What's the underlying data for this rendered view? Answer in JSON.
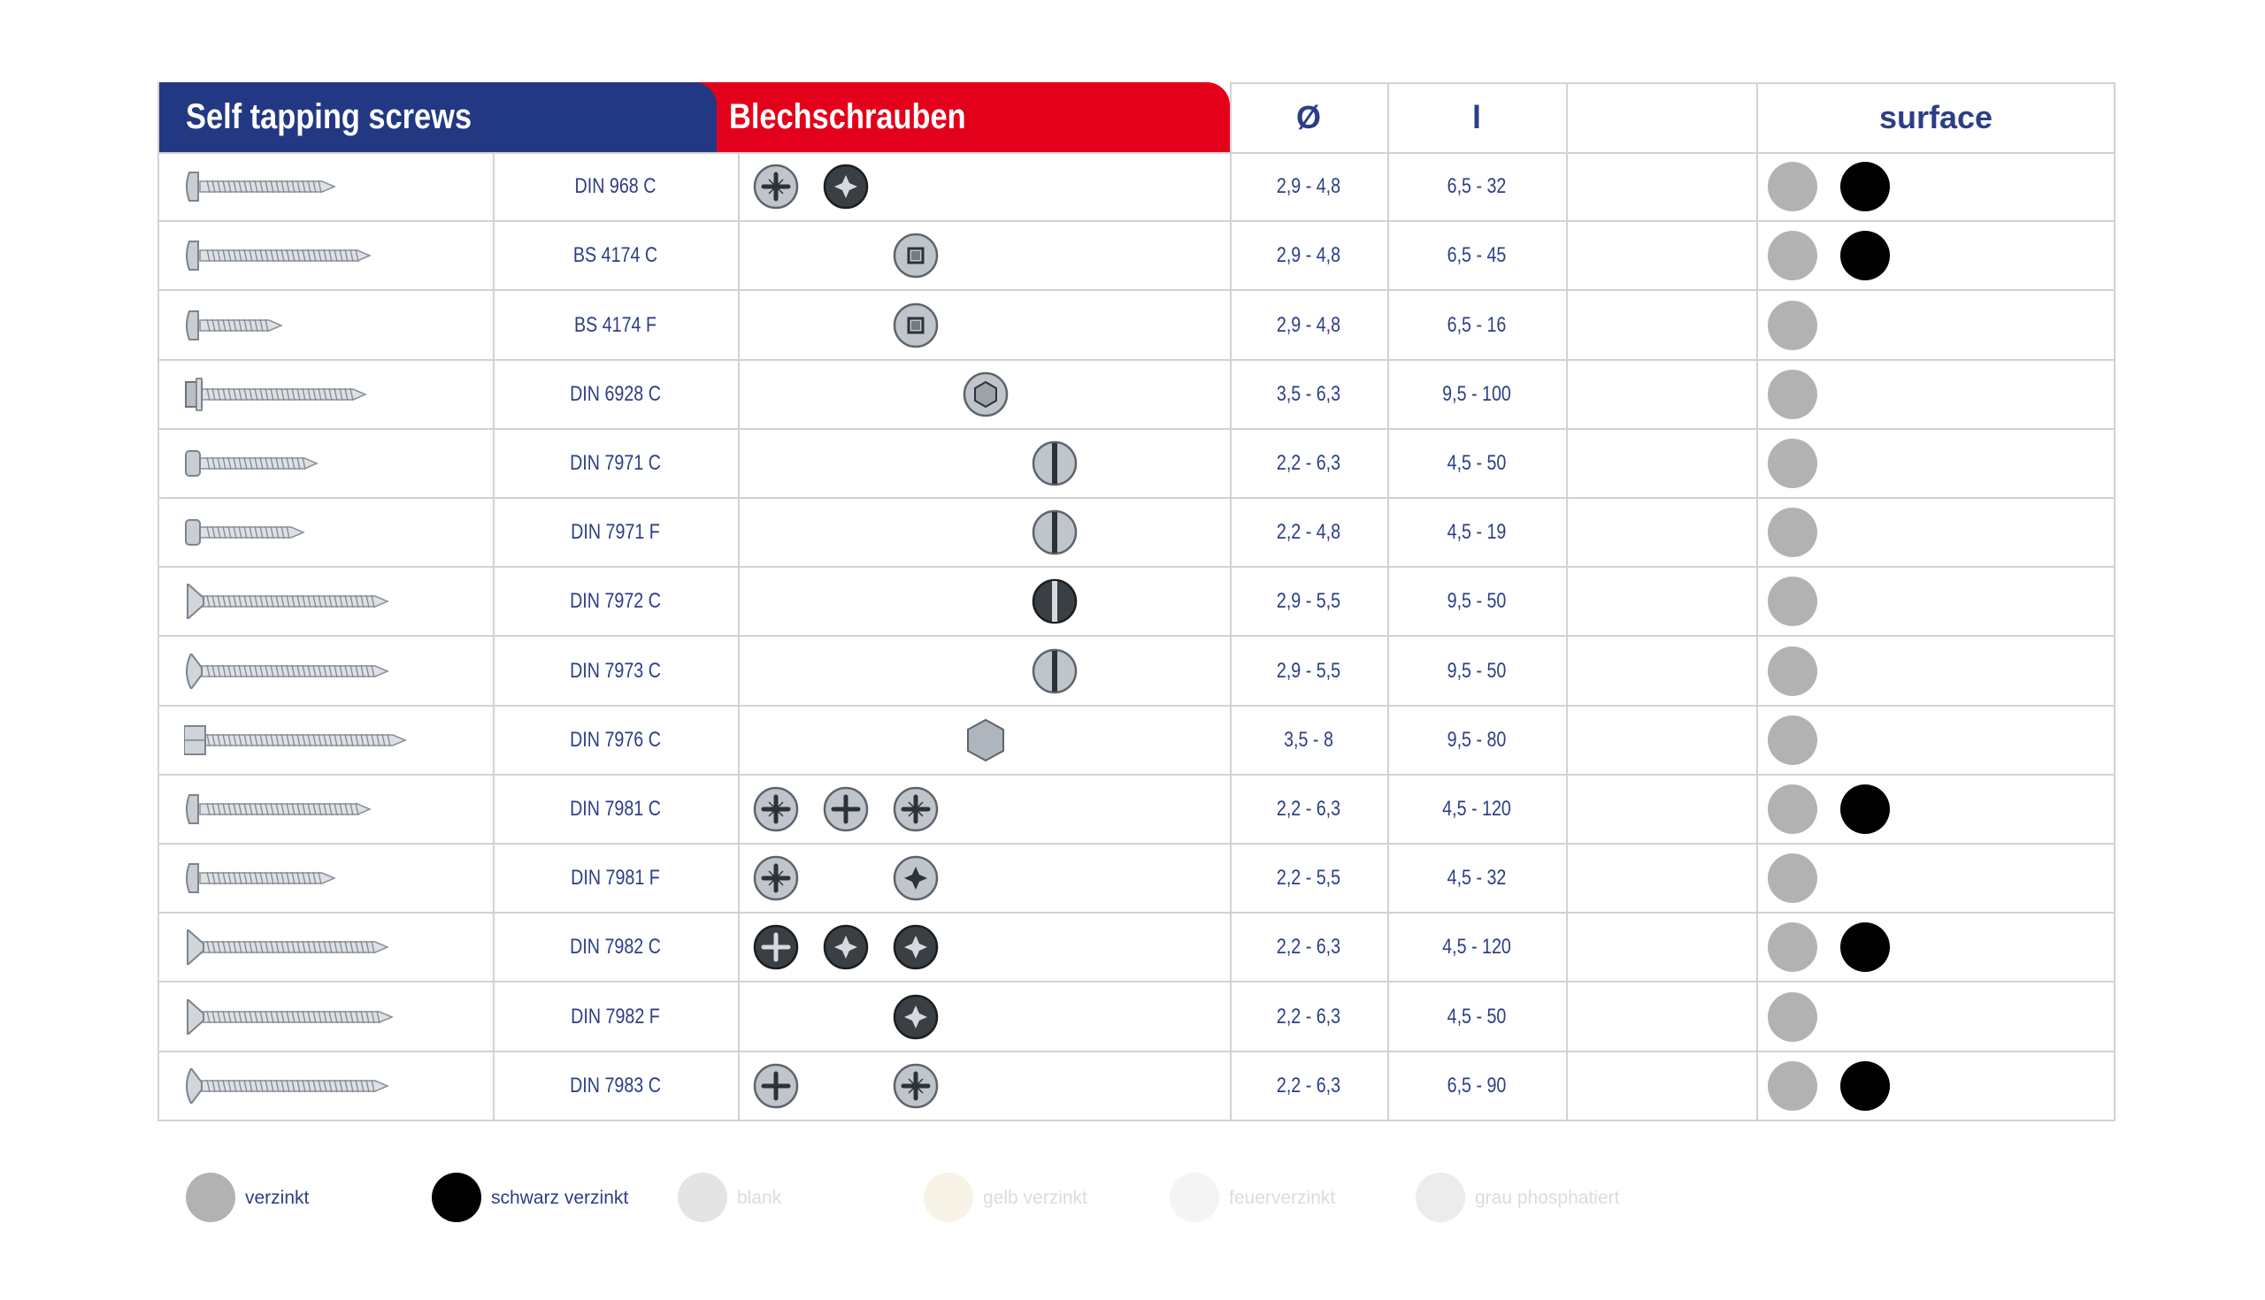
{
  "header": {
    "title_en": "Self tapping screws",
    "title_de": "Blechschrauben",
    "col_diameter": "Ø",
    "col_length": "l",
    "col_blank": "",
    "col_surface": "surface"
  },
  "colors": {
    "blue": "#233883",
    "red": "#e3001b",
    "verzinkt": "#b2b2b2",
    "schwarz_verzinkt": "#000000",
    "text": "#2c3e86"
  },
  "rows": [
    {
      "norm": "DIN 968 C",
      "diameter": "2,9 - 4,8",
      "length": "6,5 - 32",
      "heads": [
        {
          "pos": 0,
          "type": "pozi"
        },
        {
          "pos": 1,
          "type": "torx-dark"
        }
      ],
      "surface": [
        "verzinkt",
        "schwarz verzinkt"
      ],
      "screw": "pan"
    },
    {
      "norm": "BS 4174 C",
      "diameter": "2,9 - 4,8",
      "length": "6,5 - 45",
      "heads": [
        {
          "pos": 2,
          "type": "square"
        }
      ],
      "surface": [
        "verzinkt",
        "schwarz verzinkt"
      ],
      "screw": "pan-long"
    },
    {
      "norm": "BS 4174 F",
      "diameter": "2,9 - 4,8",
      "length": "6,5 - 16",
      "heads": [
        {
          "pos": 2,
          "type": "square"
        }
      ],
      "surface": [
        "verzinkt"
      ],
      "screw": "pan-short"
    },
    {
      "norm": "DIN 6928 C",
      "diameter": "3,5 - 6,3",
      "length": "9,5 - 100",
      "heads": [
        {
          "pos": 3,
          "type": "hex-washer"
        }
      ],
      "surface": [
        "verzinkt"
      ],
      "screw": "hex-washer"
    },
    {
      "norm": "DIN 7971 C",
      "diameter": "2,2 - 6,3",
      "length": "4,5 - 50",
      "heads": [
        {
          "pos": 4,
          "type": "slot"
        }
      ],
      "surface": [
        "verzinkt"
      ],
      "screw": "cheese"
    },
    {
      "norm": "DIN 7971 F",
      "diameter": "2,2 - 4,8",
      "length": "4,5 - 19",
      "heads": [
        {
          "pos": 4,
          "type": "slot"
        }
      ],
      "surface": [
        "verzinkt"
      ],
      "screw": "cheese-short"
    },
    {
      "norm": "DIN 7972 C",
      "diameter": "2,9 - 5,5",
      "length": "9,5 - 50",
      "heads": [
        {
          "pos": 4,
          "type": "slot-dark"
        }
      ],
      "surface": [
        "verzinkt"
      ],
      "screw": "countersunk"
    },
    {
      "norm": "DIN 7973 C",
      "diameter": "2,9 - 5,5",
      "length": "9,5 - 50",
      "heads": [
        {
          "pos": 4,
          "type": "slot"
        }
      ],
      "surface": [
        "verzinkt"
      ],
      "screw": "raised"
    },
    {
      "norm": "DIN 7976 C",
      "diameter": "3,5 - 8",
      "length": "9,5 - 80",
      "heads": [
        {
          "pos": 3,
          "type": "hex"
        }
      ],
      "surface": [
        "verzinkt"
      ],
      "screw": "hex"
    },
    {
      "norm": "DIN 7981 C",
      "diameter": "2,2 - 6,3",
      "length": "4,5 - 120",
      "heads": [
        {
          "pos": 0,
          "type": "pozi"
        },
        {
          "pos": 1,
          "type": "phillips"
        },
        {
          "pos": 2,
          "type": "pozi"
        }
      ],
      "surface": [
        "verzinkt",
        "schwarz verzinkt"
      ],
      "screw": "pan-long"
    },
    {
      "norm": "DIN 7981 F",
      "diameter": "2,2 - 5,5",
      "length": "4,5 - 32",
      "heads": [
        {
          "pos": 0,
          "type": "pozi"
        },
        {
          "pos": 2,
          "type": "torx"
        }
      ],
      "surface": [
        "verzinkt"
      ],
      "screw": "pan"
    },
    {
      "norm": "DIN 7982 C",
      "diameter": "2,2 - 6,3",
      "length": "4,5 - 120",
      "heads": [
        {
          "pos": 0,
          "type": "phillips-dark"
        },
        {
          "pos": 1,
          "type": "torx-dark"
        },
        {
          "pos": 2,
          "type": "torx-dark"
        }
      ],
      "surface": [
        "verzinkt",
        "schwarz verzinkt"
      ],
      "screw": "countersunk"
    },
    {
      "norm": "DIN 7982 F",
      "diameter": "2,2 - 6,3",
      "length": "4,5 - 50",
      "heads": [
        {
          "pos": 2,
          "type": "torx-dark"
        }
      ],
      "surface": [
        "verzinkt"
      ],
      "screw": "countersunk-f"
    },
    {
      "norm": "DIN 7983 C",
      "diameter": "2,2 - 6,3",
      "length": "6,5 - 90",
      "heads": [
        {
          "pos": 0,
          "type": "phillips"
        },
        {
          "pos": 2,
          "type": "pozi"
        }
      ],
      "surface": [
        "verzinkt",
        "schwarz verzinkt"
      ],
      "screw": "raised"
    }
  ],
  "legend": [
    {
      "label": "verzinkt",
      "color": "#b2b2b2",
      "active": true
    },
    {
      "label": "schwarz verzinkt",
      "color": "#000000",
      "active": true
    },
    {
      "label": "blank",
      "color": "#e4e4e4",
      "active": false
    },
    {
      "label": "gelb verzinkt",
      "color": "#f7f3e6",
      "active": false
    },
    {
      "label": "feuerverzinkt",
      "color": "#f4f4f4",
      "active": false
    },
    {
      "label": "grau phosphatiert",
      "color": "#ececec",
      "active": false
    }
  ]
}
